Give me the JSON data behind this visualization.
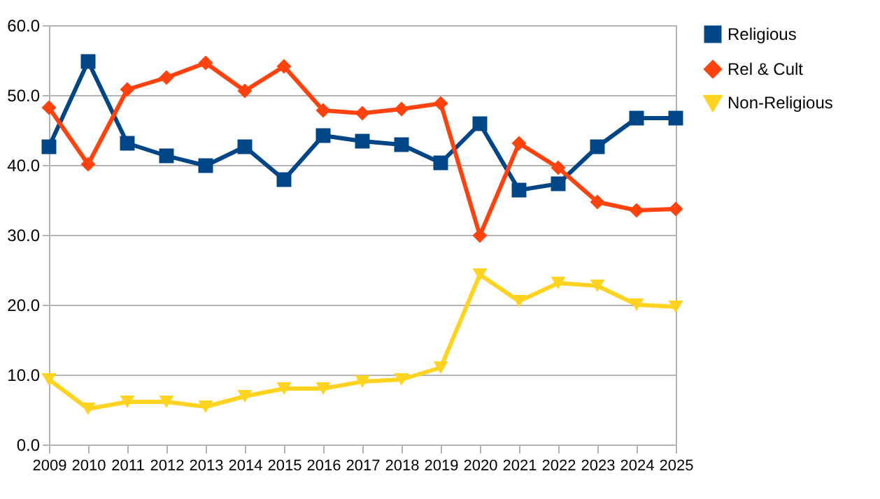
{
  "chart_data": {
    "type": "line",
    "x": [
      2009,
      2010,
      2011,
      2012,
      2013,
      2014,
      2015,
      2016,
      2017,
      2018,
      2019,
      2020,
      2021,
      2022,
      2023,
      2024,
      2025
    ],
    "xlim": [
      2009,
      2025
    ],
    "xticks": [
      2009,
      2010,
      2011,
      2012,
      2013,
      2014,
      2015,
      2016,
      2017,
      2018,
      2019,
      2020,
      2021,
      2022,
      2023,
      2024,
      2025
    ],
    "ylim": [
      0,
      60
    ],
    "yticks": [
      {
        "value": 0,
        "label": "0.0"
      },
      {
        "value": 10,
        "label": "10.0"
      },
      {
        "value": 20,
        "label": "20.0"
      },
      {
        "value": 30,
        "label": "30.0"
      },
      {
        "value": 40,
        "label": "40.0"
      },
      {
        "value": 50,
        "label": "50.0"
      },
      {
        "value": 60,
        "label": "60.0"
      }
    ],
    "grid": "y",
    "legend": "right",
    "series": [
      {
        "name": "Religious",
        "color": "#004586",
        "marker": "square",
        "values": [
          42.6,
          54.8,
          43.1,
          41.3,
          39.9,
          42.6,
          37.9,
          44.2,
          43.4,
          42.9,
          40.3,
          45.9,
          36.4,
          37.3,
          42.6,
          46.7,
          46.7
        ]
      },
      {
        "name": "Rel & Cult",
        "color": "#ff420e",
        "marker": "diamond",
        "values": [
          48.2,
          40.1,
          50.8,
          52.5,
          54.6,
          50.6,
          54.1,
          47.8,
          47.4,
          48.0,
          48.8,
          29.9,
          43.1,
          39.6,
          34.7,
          33.5,
          33.7
        ]
      },
      {
        "name": "Non-Religious",
        "color": "#ffd320",
        "marker": "triangle-down",
        "values": [
          9.3,
          5.1,
          6.1,
          6.1,
          5.4,
          6.9,
          8.0,
          8.0,
          9.0,
          9.3,
          11.0,
          24.3,
          20.5,
          23.1,
          22.7,
          20.0,
          19.7
        ]
      }
    ]
  }
}
